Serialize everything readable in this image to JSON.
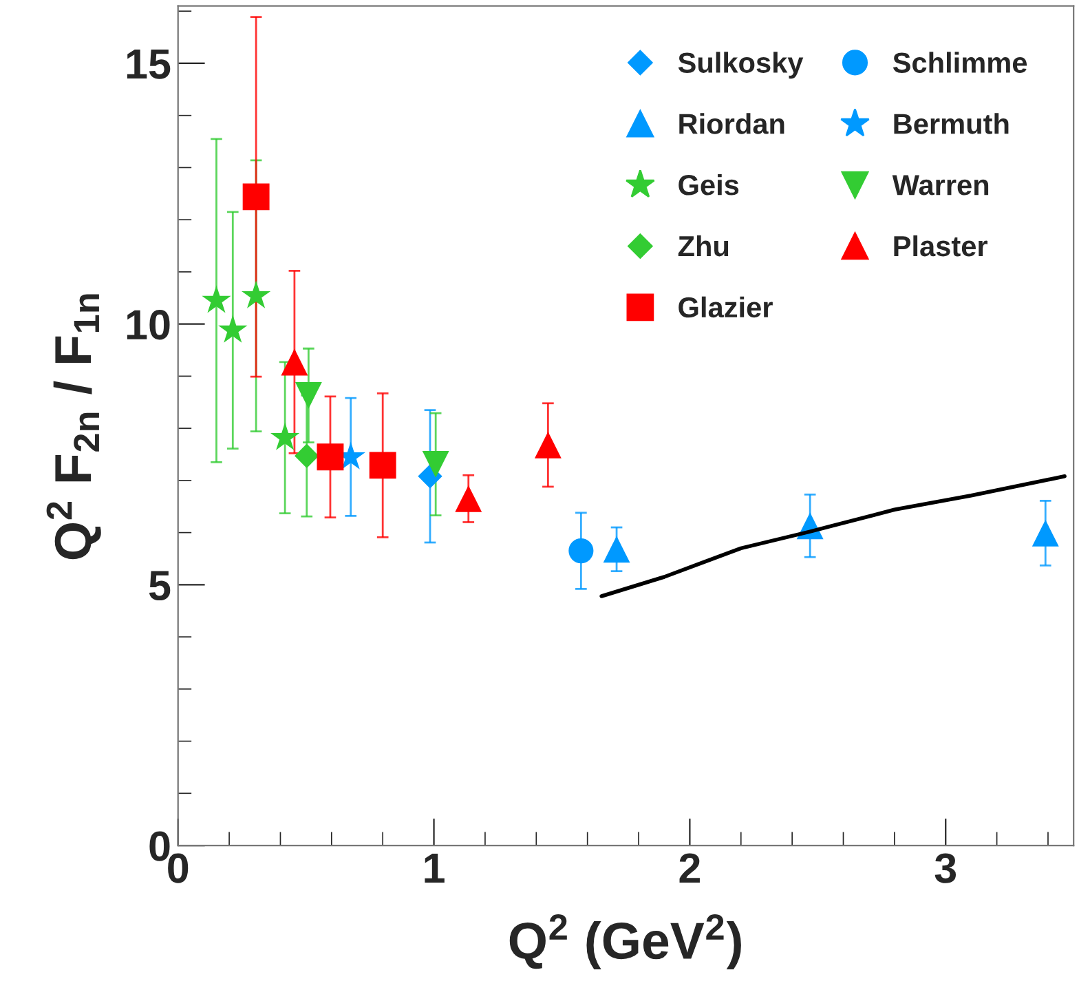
{
  "chart_data": {
    "type": "scatter",
    "xlabel": "Q$^{2}$ (GeV$^{2}$)",
    "ylabel": "Q$^{2}$ F$_{2n}$ / F$_{1n}$",
    "xlim": [
      0,
      3.5
    ],
    "ylim": [
      0,
      16.1
    ],
    "xticks": [
      0,
      1,
      2,
      3
    ],
    "yticks": [
      0,
      5,
      10,
      15
    ],
    "legend": "top right",
    "grid": false,
    "series": [
      {
        "name": "Sulkosky",
        "color": "#0099ff",
        "marker": "diamond",
        "x": [
          0.985
        ],
        "values": [
          7.08
        ],
        "errors": [
          1.27
        ]
      },
      {
        "name": "Schlimme",
        "color": "#0099ff",
        "marker": "circle",
        "x": [
          1.575
        ],
        "values": [
          5.65
        ],
        "errors": [
          0.73
        ]
      },
      {
        "name": "Riordan",
        "color": "#0099ff",
        "marker": "triangle",
        "x": [
          1.714,
          2.47,
          3.39
        ],
        "values": [
          5.68,
          6.13,
          5.99
        ],
        "errors": [
          0.42,
          0.6,
          0.62
        ]
      },
      {
        "name": "Bermuth",
        "color": "#0099ff",
        "marker": "star",
        "x": [
          0.675
        ],
        "values": [
          7.45
        ],
        "errors": [
          1.13
        ]
      },
      {
        "name": "Geis",
        "color": "#33cc33",
        "marker": "star",
        "x": [
          0.15,
          0.214,
          0.305,
          0.418
        ],
        "values": [
          10.45,
          9.88,
          10.54,
          7.82
        ],
        "errors": [
          3.1,
          2.27,
          2.6,
          1.45
        ]
      },
      {
        "name": "Warren",
        "color": "#33cc33",
        "marker": "triangle_down",
        "x": [
          0.51,
          1.007
        ],
        "values": [
          8.63,
          7.31
        ],
        "errors": [
          0.9,
          0.98
        ]
      },
      {
        "name": "Zhu",
        "color": "#33cc33",
        "marker": "diamond",
        "x": [
          0.503
        ],
        "values": [
          7.47
        ],
        "errors": [
          1.16
        ]
      },
      {
        "name": "Plaster",
        "color": "#ff0000",
        "marker": "triangle",
        "x": [
          0.455,
          1.135,
          1.446
        ],
        "values": [
          9.27,
          6.65,
          7.68
        ],
        "errors": [
          1.75,
          0.45,
          0.8
        ]
      },
      {
        "name": "Glazier",
        "color": "#ff0000",
        "marker": "square",
        "x": [
          0.305,
          0.595,
          0.8
        ],
        "values": [
          12.44,
          7.45,
          7.29
        ],
        "errors": [
          3.45,
          1.16,
          1.38
        ]
      },
      {
        "type": "line",
        "color": "#000000",
        "marker": "none",
        "line_style": "solid",
        "x": [
          1.655,
          1.9,
          2.2,
          2.47,
          2.8,
          3.1,
          3.465
        ],
        "values": [
          4.78,
          5.15,
          5.7,
          6.02,
          6.44,
          6.71,
          7.08
        ]
      }
    ]
  }
}
